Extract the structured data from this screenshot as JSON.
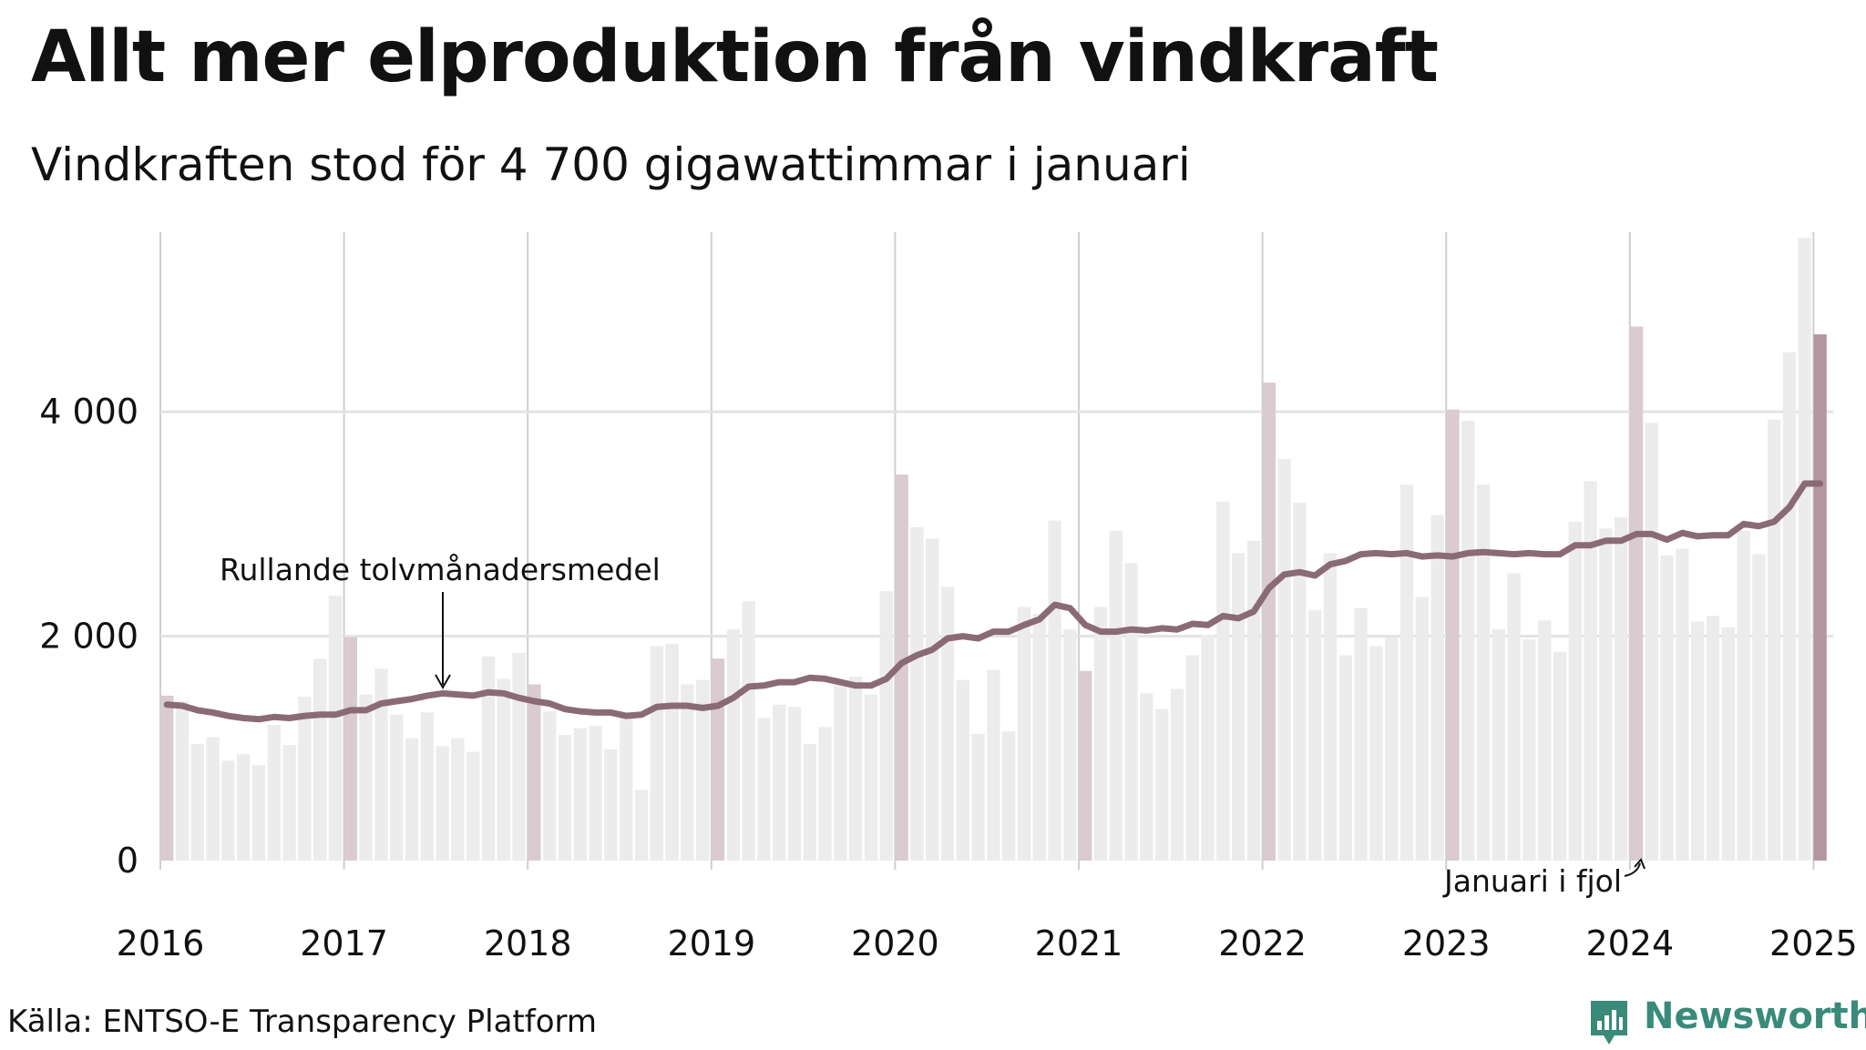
{
  "title": "Allt mer elproduktion från vindkraft",
  "subtitle": "Vindkraften stod för 4 700 gigawattimmar i januari",
  "source": "Källa: ENTSO-E Transparency Platform",
  "brand": {
    "name": "Newsworthy",
    "icon": "newsworthy-logo-icon",
    "color": "#3a8a7a"
  },
  "chart_data": {
    "type": "bar",
    "unit": "",
    "ylim": [
      0,
      5600
    ],
    "y_ticks": [
      0,
      2000,
      4000
    ],
    "y_tick_labels": [
      "0",
      "2 000",
      "4 000"
    ],
    "x_tick_labels": [
      "2016",
      "2017",
      "2018",
      "2019",
      "2020",
      "2021",
      "2022",
      "2023",
      "2024",
      "2025"
    ],
    "grid": true,
    "colors": {
      "bar": "#ececec",
      "january_bar": "#d9cbcf",
      "last_january_bar": "#b3969e",
      "rolling_line": "#8a6b74",
      "gridline": "#e3e3e3",
      "year_line": "#cfcdd6"
    },
    "annotations": {
      "rolling_label": "Rullande tolvmånadersmedel",
      "january_last_year": "Januari i fjol"
    },
    "start": "2016-01",
    "monthly_values": [
      1470,
      1420,
      1040,
      1100,
      890,
      950,
      850,
      1210,
      1030,
      1460,
      1800,
      2360,
      1990,
      1480,
      1710,
      1300,
      1090,
      1320,
      1020,
      1090,
      970,
      1820,
      1620,
      1850,
      1570,
      1330,
      1120,
      1180,
      1200,
      990,
      1310,
      630,
      1910,
      1930,
      1570,
      1610,
      1800,
      2060,
      2310,
      1270,
      1390,
      1370,
      1040,
      1190,
      1600,
      1640,
      1480,
      2400,
      3440,
      2970,
      2870,
      2440,
      1610,
      1130,
      1700,
      1150,
      2260,
      2200,
      3030,
      2060,
      1690,
      2260,
      2940,
      2650,
      1490,
      1350,
      1530,
      1830,
      2010,
      3200,
      2740,
      2850,
      4260,
      3580,
      3190,
      2230,
      2740,
      1830,
      2250,
      1910,
      1990,
      3350,
      2350,
      3080,
      4020,
      3920,
      3350,
      2060,
      2560,
      1970,
      2140,
      1860,
      3020,
      3380,
      2960,
      3060,
      4760,
      3900,
      2720,
      2780,
      2130,
      2180,
      2080,
      2940,
      2730,
      3930,
      4530,
      5550,
      4690
    ],
    "rolling_average": [
      1390,
      1380,
      1340,
      1320,
      1290,
      1270,
      1260,
      1280,
      1270,
      1290,
      1300,
      1300,
      1340,
      1340,
      1400,
      1420,
      1440,
      1470,
      1490,
      1480,
      1470,
      1500,
      1490,
      1450,
      1420,
      1400,
      1350,
      1330,
      1320,
      1320,
      1290,
      1300,
      1370,
      1380,
      1380,
      1360,
      1380,
      1450,
      1550,
      1560,
      1590,
      1590,
      1630,
      1620,
      1590,
      1560,
      1560,
      1620,
      1760,
      1830,
      1880,
      1980,
      2000,
      1980,
      2040,
      2040,
      2100,
      2150,
      2280,
      2250,
      2100,
      2040,
      2040,
      2060,
      2050,
      2070,
      2060,
      2110,
      2100,
      2180,
      2160,
      2220,
      2430,
      2550,
      2570,
      2540,
      2640,
      2670,
      2730,
      2740,
      2730,
      2740,
      2710,
      2720,
      2710,
      2740,
      2750,
      2740,
      2730,
      2740,
      2730,
      2730,
      2810,
      2810,
      2850,
      2850,
      2910,
      2910,
      2860,
      2920,
      2890,
      2900,
      2900,
      3000,
      2980,
      3020,
      3150,
      3360,
      3360
    ]
  }
}
